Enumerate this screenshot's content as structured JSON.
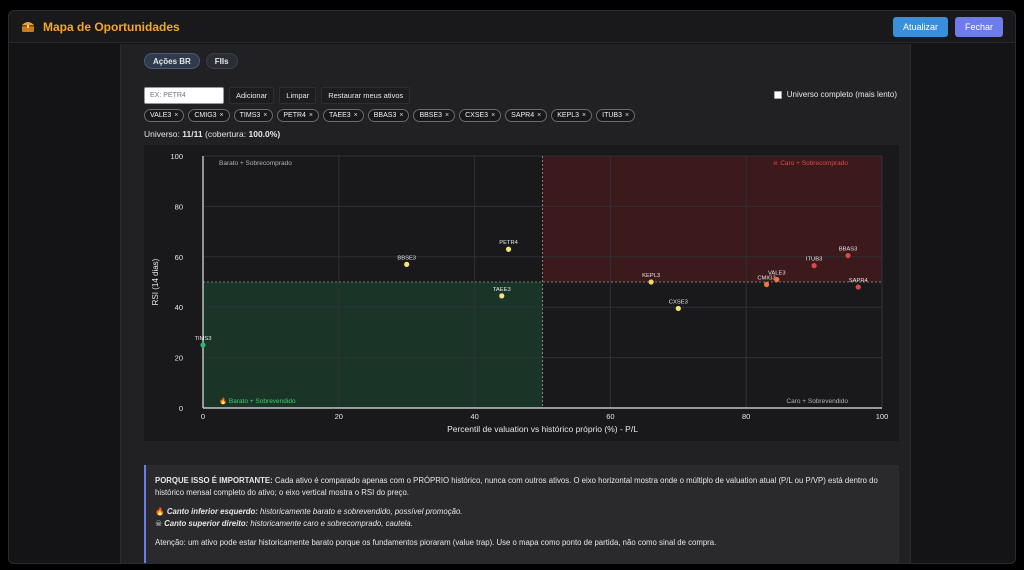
{
  "window": {
    "title": "Mapa de Oportunidades",
    "title_icon": "treasure-chest-icon",
    "buttons": {
      "refresh": "Atualizar",
      "close": "Fechar"
    }
  },
  "tabs": [
    {
      "label": "Ações BR",
      "active": true
    },
    {
      "label": "FIIs",
      "active": false
    }
  ],
  "controls": {
    "input_placeholder": "EX: PETR4",
    "add": "Adicionar",
    "clear": "Limpar",
    "restore": "Restaurar meus ativos",
    "full_universe": "Universo completo (mais lento)"
  },
  "chips": [
    "VALE3",
    "CMIG3",
    "TIMS3",
    "PETR4",
    "TAEE3",
    "BBAS3",
    "BBSE3",
    "CXSE3",
    "SAPR4",
    "KEPL3",
    "ITUB3"
  ],
  "universe": {
    "label": "Universo:",
    "count": "11/11",
    "coverage_label": "(cobertura:",
    "coverage": "100.0%)"
  },
  "chart_data": {
    "type": "scatter",
    "xlabel": "Percentil de valuation vs histórico próprio (%) - P/L",
    "ylabel": "RSI (14 dias)",
    "xlim": [
      0,
      100
    ],
    "ylim": [
      0,
      100
    ],
    "xticks": [
      0,
      20,
      40,
      60,
      80,
      100
    ],
    "yticks": [
      0,
      20,
      40,
      60,
      80,
      100
    ],
    "x_divider": 50,
    "y_divider": 50,
    "grid": true,
    "quadrants": {
      "top_left": "Barato + Sobrecomprado",
      "top_right": "Caro + Sobrecomprado",
      "bottom_left": "Barato + Sobrevendido",
      "bottom_right": "Caro + Sobrevendido"
    },
    "colors": {
      "cheap": "#1f9d55",
      "expensive": "#b91c1c",
      "mid": "#f6e27a",
      "orange": "#f07a3a",
      "red": "#e04848"
    },
    "points": [
      {
        "label": "TIMS3",
        "x": 0,
        "y": 25,
        "color": "#2bb673"
      },
      {
        "label": "BBSE3",
        "x": 30,
        "y": 57,
        "color": "#f6e27a"
      },
      {
        "label": "PETR4",
        "x": 45,
        "y": 63,
        "color": "#f6e27a"
      },
      {
        "label": "TAEE3",
        "x": 44,
        "y": 44.5,
        "color": "#f6e27a"
      },
      {
        "label": "KEPL3",
        "x": 66,
        "y": 50,
        "color": "#f6d36a"
      },
      {
        "label": "CXSE3",
        "x": 70,
        "y": 39.5,
        "color": "#f6e27a"
      },
      {
        "label": "CMIG3",
        "x": 83,
        "y": 49,
        "color": "#f07a3a"
      },
      {
        "label": "VALE3",
        "x": 84.5,
        "y": 51,
        "color": "#f07a3a"
      },
      {
        "label": "ITUB3",
        "x": 90,
        "y": 56.5,
        "color": "#e04848"
      },
      {
        "label": "BBAS3",
        "x": 95,
        "y": 60.5,
        "color": "#e04848"
      },
      {
        "label": "SAPR4",
        "x": 96.5,
        "y": 48,
        "color": "#e04848"
      }
    ]
  },
  "info": {
    "heading": "PORQUE ISSO É IMPORTANTE:",
    "body": "Cada ativo é comparado apenas com o PRÓPRIO histórico, nunca com outros ativos. O eixo horizontal mostra onde o múltiplo de valuation atual (P/L ou P/VP) está dentro do histórico mensal completo do ativo; o eixo vertical mostra o RSI do preço.",
    "bottom_left_label": "Canto inferior esquerdo:",
    "bottom_left_text": "historicamente barato e sobrevendido, possível promoção.",
    "top_right_label": "Canto superior direito:",
    "top_right_text": "historicamente caro e sobrecomprado, cautela.",
    "warning": "Atenção: um ativo pode estar historicamente barato porque os fundamentos pioraram (value trap). Use o mapa como ponto de partida, não como sinal de compra."
  }
}
